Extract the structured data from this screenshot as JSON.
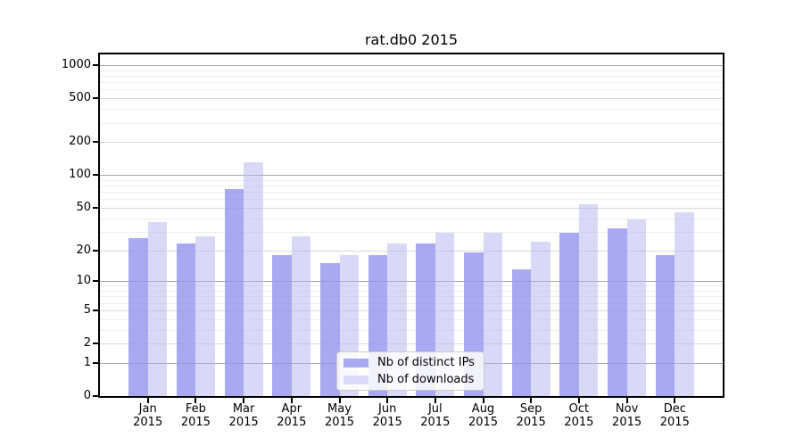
{
  "chart_data": {
    "type": "bar",
    "title": "rat.db0 2015",
    "categories": [
      "Jan",
      "Feb",
      "Mar",
      "Apr",
      "May",
      "Jun",
      "Jul",
      "Aug",
      "Sep",
      "Oct",
      "Nov",
      "Dec"
    ],
    "category_sublabel": "2015",
    "series": [
      {
        "name": "Nb of distinct IPs",
        "values": [
          26,
          23,
          74,
          18,
          15,
          18,
          23,
          19,
          13,
          29,
          32,
          18
        ],
        "color": "#a9a9f1",
        "fill": "rgba(148,148,237,0.8)"
      },
      {
        "name": "Nb of downloads",
        "values": [
          37,
          27,
          130,
          27,
          18,
          23,
          29,
          29,
          24,
          54,
          39,
          45
        ],
        "color": "#dadaf8",
        "fill": "rgba(180,180,240,0.5)"
      }
    ],
    "yscale": "log1p",
    "yticks": [
      0,
      1,
      2,
      5,
      10,
      20,
      50,
      100,
      200,
      500,
      1000
    ],
    "major_grid_values": [
      1,
      10,
      100,
      1000
    ],
    "labeled_grid_values": [
      2,
      5,
      20,
      50,
      200,
      500
    ],
    "ylim": [
      0,
      1250
    ],
    "grid": "on",
    "legend_position": "lower center"
  },
  "colors": {
    "major_grid": "#a8a8a8",
    "labeled_grid": "#d9d9d9",
    "minor_grid": "#eeeeee",
    "axis": "#000000",
    "text": "#000000",
    "legend_border": "#cccccc"
  }
}
